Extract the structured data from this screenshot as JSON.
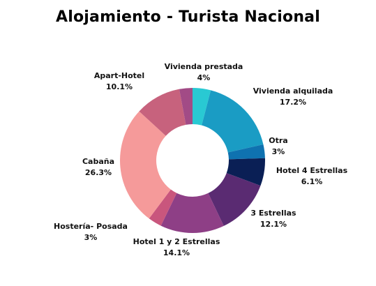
{
  "chart_data": {
    "type": "pie",
    "title": "Alojamiento - Turista Nacional",
    "donut": true,
    "slices": [
      {
        "label": "Vivienda prestada",
        "value": 4,
        "display": "4%",
        "color": "#29c9d3"
      },
      {
        "label": "Vivienda alquilada",
        "value": 17.2,
        "display": "17.2%",
        "color": "#1a9cc4"
      },
      {
        "label": "Otra",
        "value": 3,
        "display": "3%",
        "color": "#0f72b0"
      },
      {
        "label": "Hotel 4 Estrellas",
        "value": 6.1,
        "display": "6.1%",
        "color": "#0a1f55"
      },
      {
        "label": "3 Estrellas",
        "value": 12.1,
        "display": "12.1%",
        "color": "#5a2b72"
      },
      {
        "label": "Hotel 1 y 2 Estrellas",
        "value": 14.1,
        "display": "14.1%",
        "color": "#8e3f86"
      },
      {
        "label": "Hostería- Posada",
        "value": 3,
        "display": "3%",
        "color": "#c9567d"
      },
      {
        "label": "Cabaña",
        "value": 26.3,
        "display": "26.3%",
        "color": "#f59a9a"
      },
      {
        "label": "Apart-Hotel",
        "value": 10.1,
        "display": "10.1%",
        "color": "#c7627d"
      },
      {
        "label": "",
        "value": 2.9,
        "display": "",
        "color": "#a24b86"
      }
    ],
    "start_angle": 0,
    "legend": "none"
  }
}
